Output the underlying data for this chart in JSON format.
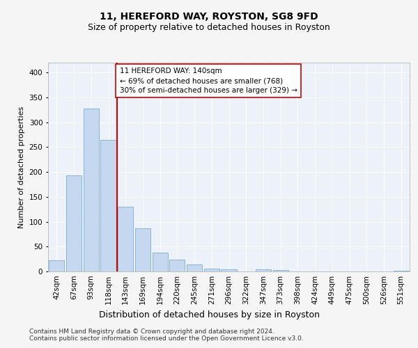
{
  "title1": "11, HEREFORD WAY, ROYSTON, SG8 9FD",
  "title2": "Size of property relative to detached houses in Royston",
  "xlabel": "Distribution of detached houses by size in Royston",
  "ylabel": "Number of detached properties",
  "bar_labels": [
    "42sqm",
    "67sqm",
    "93sqm",
    "118sqm",
    "143sqm",
    "169sqm",
    "194sqm",
    "220sqm",
    "245sqm",
    "271sqm",
    "296sqm",
    "322sqm",
    "347sqm",
    "373sqm",
    "398sqm",
    "424sqm",
    "449sqm",
    "475sqm",
    "500sqm",
    "526sqm",
    "551sqm"
  ],
  "bar_values": [
    22,
    193,
    328,
    265,
    130,
    87,
    38,
    24,
    14,
    6,
    4,
    0,
    4,
    3,
    0,
    0,
    0,
    0,
    0,
    0,
    2
  ],
  "bar_color": "#c5d8f0",
  "bar_edgecolor": "#7aadd4",
  "vline_x": 3.5,
  "annotation_line1": "11 HEREFORD WAY: 140sqm",
  "annotation_line2": "← 69% of detached houses are smaller (768)",
  "annotation_line3": "30% of semi-detached houses are larger (329) →",
  "vline_color": "#cc0000",
  "box_edgecolor": "#cc0000",
  "footnote1": "Contains HM Land Registry data © Crown copyright and database right 2024.",
  "footnote2": "Contains public sector information licensed under the Open Government Licence v3.0.",
  "ylim": [
    0,
    420
  ],
  "yticks": [
    0,
    50,
    100,
    150,
    200,
    250,
    300,
    350,
    400
  ],
  "background_color": "#edf2fa",
  "grid_color": "#ffffff",
  "fig_facecolor": "#f5f5f5",
  "title1_fontsize": 10,
  "title2_fontsize": 9,
  "xlabel_fontsize": 9,
  "ylabel_fontsize": 8,
  "tick_fontsize": 7.5,
  "annot_fontsize": 7.5,
  "footnote_fontsize": 6.5
}
